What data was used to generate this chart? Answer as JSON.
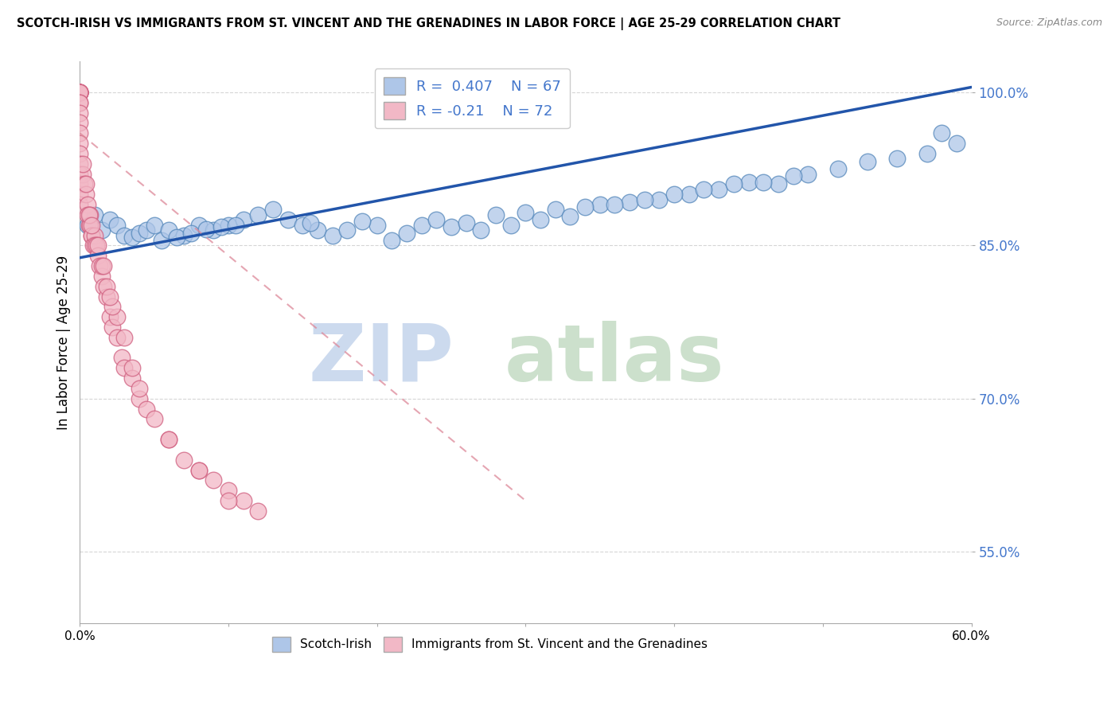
{
  "title": "SCOTCH-IRISH VS IMMIGRANTS FROM ST. VINCENT AND THE GRENADINES IN LABOR FORCE | AGE 25-29 CORRELATION CHART",
  "source": "Source: ZipAtlas.com",
  "ylabel": "In Labor Force | Age 25-29",
  "xmin": 0.0,
  "xmax": 0.6,
  "ymin": 0.48,
  "ymax": 1.03,
  "yticks": [
    0.55,
    0.7,
    0.85,
    1.0
  ],
  "ytick_labels": [
    "55.0%",
    "70.0%",
    "85.0%",
    "100.0%"
  ],
  "xtick_positions": [
    0.0,
    0.1,
    0.2,
    0.3,
    0.4,
    0.5,
    0.6
  ],
  "xtick_labels": [
    "0.0%",
    "",
    "",
    "",
    "",
    "",
    "60.0%"
  ],
  "scotch_irish_R": 0.407,
  "scotch_irish_N": 67,
  "svg_R": -0.21,
  "svg_N": 72,
  "scotch_irish_color": "#aec6e8",
  "scotch_irish_edge": "#5588bb",
  "svg_color": "#f2b8c6",
  "svg_edge": "#d06080",
  "trend_scotch_color": "#2255aa",
  "trend_svg_color": "#dd8899",
  "watermark_zip_color": "#ccdaee",
  "watermark_atlas_color": "#cce0cc",
  "grid_color": "#cccccc",
  "scotch_irish_x": [
    0.005,
    0.01,
    0.015,
    0.02,
    0.025,
    0.03,
    0.035,
    0.04,
    0.045,
    0.05,
    0.055,
    0.06,
    0.07,
    0.08,
    0.09,
    0.1,
    0.11,
    0.12,
    0.13,
    0.14,
    0.15,
    0.16,
    0.17,
    0.18,
    0.2,
    0.21,
    0.22,
    0.23,
    0.24,
    0.25,
    0.26,
    0.27,
    0.28,
    0.29,
    0.3,
    0.31,
    0.32,
    0.33,
    0.35,
    0.37,
    0.39,
    0.41,
    0.43,
    0.45,
    0.47,
    0.49,
    0.51,
    0.53,
    0.55,
    0.57,
    0.59,
    0.065,
    0.075,
    0.085,
    0.095,
    0.105,
    0.155,
    0.19,
    0.34,
    0.36,
    0.38,
    0.4,
    0.42,
    0.44,
    0.46,
    0.48,
    0.58
  ],
  "scotch_irish_y": [
    0.87,
    0.88,
    0.865,
    0.875,
    0.87,
    0.86,
    0.858,
    0.862,
    0.865,
    0.87,
    0.855,
    0.865,
    0.86,
    0.87,
    0.865,
    0.87,
    0.875,
    0.88,
    0.885,
    0.875,
    0.87,
    0.865,
    0.86,
    0.865,
    0.87,
    0.855,
    0.862,
    0.87,
    0.875,
    0.868,
    0.872,
    0.865,
    0.88,
    0.87,
    0.882,
    0.875,
    0.885,
    0.878,
    0.89,
    0.892,
    0.895,
    0.9,
    0.905,
    0.912,
    0.91,
    0.92,
    0.925,
    0.932,
    0.935,
    0.94,
    0.95,
    0.858,
    0.862,
    0.866,
    0.868,
    0.87,
    0.872,
    0.874,
    0.888,
    0.89,
    0.895,
    0.9,
    0.905,
    0.91,
    0.912,
    0.918,
    0.96
  ],
  "svg_x": [
    0.0,
    0.0,
    0.0,
    0.0,
    0.0,
    0.0,
    0.0,
    0.0,
    0.0,
    0.0,
    0.0,
    0.0,
    0.0,
    0.0,
    0.0,
    0.0,
    0.0,
    0.0,
    0.0,
    0.0,
    0.002,
    0.003,
    0.004,
    0.005,
    0.005,
    0.006,
    0.007,
    0.007,
    0.008,
    0.008,
    0.009,
    0.01,
    0.01,
    0.011,
    0.012,
    0.013,
    0.015,
    0.016,
    0.018,
    0.02,
    0.022,
    0.025,
    0.028,
    0.03,
    0.035,
    0.04,
    0.045,
    0.05,
    0.06,
    0.07,
    0.08,
    0.09,
    0.1,
    0.11,
    0.12,
    0.025,
    0.03,
    0.035,
    0.015,
    0.018,
    0.022,
    0.006,
    0.008,
    0.012,
    0.016,
    0.02,
    0.04,
    0.06,
    0.08,
    0.1,
    0.002,
    0.004
  ],
  "svg_y": [
    1.0,
    1.0,
    1.0,
    1.0,
    1.0,
    1.0,
    1.0,
    1.0,
    0.99,
    0.99,
    0.98,
    0.97,
    0.96,
    0.95,
    0.94,
    0.93,
    0.92,
    0.91,
    0.9,
    0.89,
    0.92,
    0.91,
    0.9,
    0.89,
    0.88,
    0.87,
    0.88,
    0.87,
    0.86,
    0.86,
    0.85,
    0.86,
    0.85,
    0.85,
    0.84,
    0.83,
    0.82,
    0.81,
    0.8,
    0.78,
    0.77,
    0.76,
    0.74,
    0.73,
    0.72,
    0.7,
    0.69,
    0.68,
    0.66,
    0.64,
    0.63,
    0.62,
    0.61,
    0.6,
    0.59,
    0.78,
    0.76,
    0.73,
    0.83,
    0.81,
    0.79,
    0.88,
    0.87,
    0.85,
    0.83,
    0.8,
    0.71,
    0.66,
    0.63,
    0.6,
    0.93,
    0.91
  ],
  "trend_si_x0": 0.0,
  "trend_si_y0": 0.838,
  "trend_si_x1": 0.6,
  "trend_si_y1": 1.005,
  "trend_svg_x0": 0.0,
  "trend_svg_y0": 0.96,
  "trend_svg_x1": 0.3,
  "trend_svg_y1": 0.6
}
